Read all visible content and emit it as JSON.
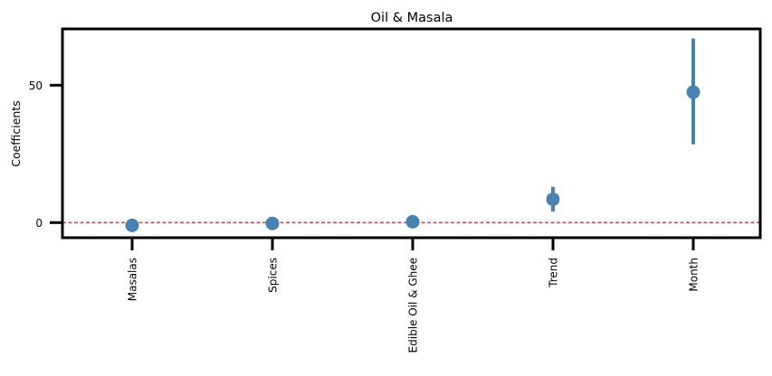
{
  "chart_data": {
    "type": "scatter",
    "title": "Oil & Masala",
    "xlabel": "",
    "ylabel": "Coefficients",
    "categories": [
      "Masalas",
      "Spices",
      "Edible Oil & Ghee",
      "Trend",
      "Month"
    ],
    "values": [
      -1.0,
      -0.3,
      0.3,
      8.5,
      47.5
    ],
    "ci_low": [
      -1.5,
      -0.8,
      -0.2,
      4.0,
      28.5
    ],
    "ci_high": [
      -0.5,
      0.2,
      0.8,
      13.0,
      67.0
    ],
    "yticks": [
      0,
      50
    ],
    "ylim": [
      -5.5,
      70.5
    ],
    "reference_line": {
      "y": 0,
      "style": "dashed",
      "color": "#e8141c"
    },
    "point_color": "#4682b4",
    "grid": false,
    "legend": "none"
  }
}
